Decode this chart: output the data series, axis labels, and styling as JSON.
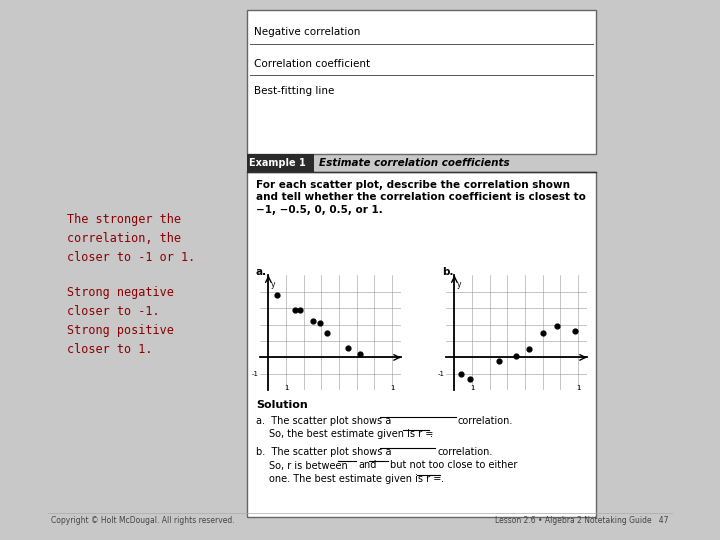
{
  "bg_color": "#c8c8c8",
  "page_bg": "#ffffff",
  "top_lines": [
    "Negative correlation",
    "Correlation coefficient",
    "Best-fitting line"
  ],
  "left_note1": "The stronger the\ncorrelation, the\ncloser to -1 or 1.",
  "left_note2": "Strong negative\ncloser to -1.\nStrong positive\ncloser to 1.",
  "example_label": "Example 1",
  "example_title": "Estimate correlation coefficients",
  "problem_text_line1": "For each scatter plot, describe the correlation shown",
  "problem_text_line2": "and tell whether the correlation coefficient is closest to",
  "problem_text_line3": "−1, −0.5, 0, 0.5, or 1.",
  "scatter_a_x": [
    0.5,
    1.5,
    1.8,
    2.5,
    2.9,
    3.3,
    4.5,
    5.2
  ],
  "scatter_a_y": [
    3.8,
    2.9,
    2.9,
    2.2,
    2.1,
    1.5,
    0.6,
    0.2
  ],
  "scatter_b_x": [
    0.4,
    0.9,
    2.5,
    3.5,
    4.2,
    5.0,
    5.8,
    6.8
  ],
  "scatter_b_y": [
    -1.0,
    -1.3,
    -0.2,
    0.1,
    0.5,
    1.5,
    1.9,
    1.6
  ],
  "solution_label": "Solution",
  "sol_a_line1": "a.  The scatter plot shows a",
  "sol_a_blank1_end": "correlation.",
  "sol_a_line2": "So, the best estimate given is r =",
  "sol_b_line1": "b.  The scatter plot shows a",
  "sol_b_blank1_end": "correlation.",
  "sol_b_line2": "So, r is between",
  "sol_b_and": "and",
  "sol_b_rest": "but not too close to either",
  "sol_b_line3": "one. The best estimate given is r =",
  "footer_left": "Copyright © Holt McDougal. All rights reserved.",
  "footer_right": "Lesson 2.6 • Algebra 2 Notetaking Guide   47",
  "red_color": "#8b0000",
  "font_mono": "Courier New"
}
